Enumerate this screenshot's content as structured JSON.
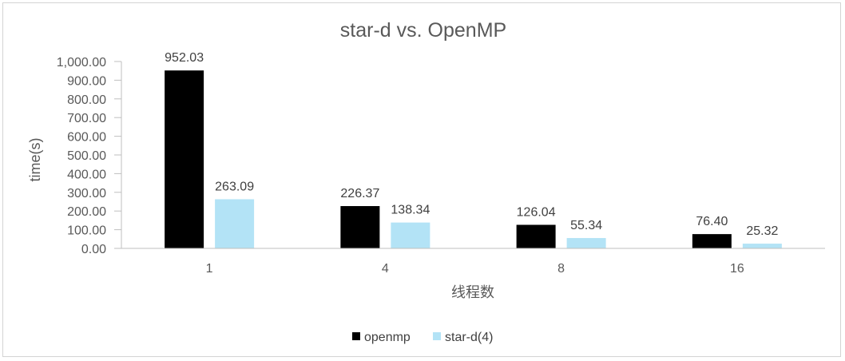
{
  "chart_data": {
    "type": "bar",
    "title": "star-d vs. OpenMP",
    "xlabel": "线程数",
    "ylabel": "time(s)",
    "categories": [
      "1",
      "4",
      "8",
      "16"
    ],
    "series": [
      {
        "name": "openmp",
        "values": [
          952.03,
          226.37,
          126.04,
          76.4
        ],
        "labels": [
          "952.03",
          "226.37",
          "126.04",
          "76.40"
        ],
        "color": "#000000"
      },
      {
        "name": "star-d(4)",
        "values": [
          263.09,
          138.34,
          55.34,
          25.32
        ],
        "labels": [
          "263.09",
          "138.34",
          "55.34",
          "25.32"
        ],
        "color": "#b3e3f6"
      }
    ],
    "ylim": [
      0,
      1000
    ],
    "yticks": [
      "0.00",
      "100.00",
      "200.00",
      "300.00",
      "400.00",
      "500.00",
      "600.00",
      "700.00",
      "800.00",
      "900.00",
      "1,000.00"
    ],
    "grid": false,
    "legend_position": "bottom"
  }
}
